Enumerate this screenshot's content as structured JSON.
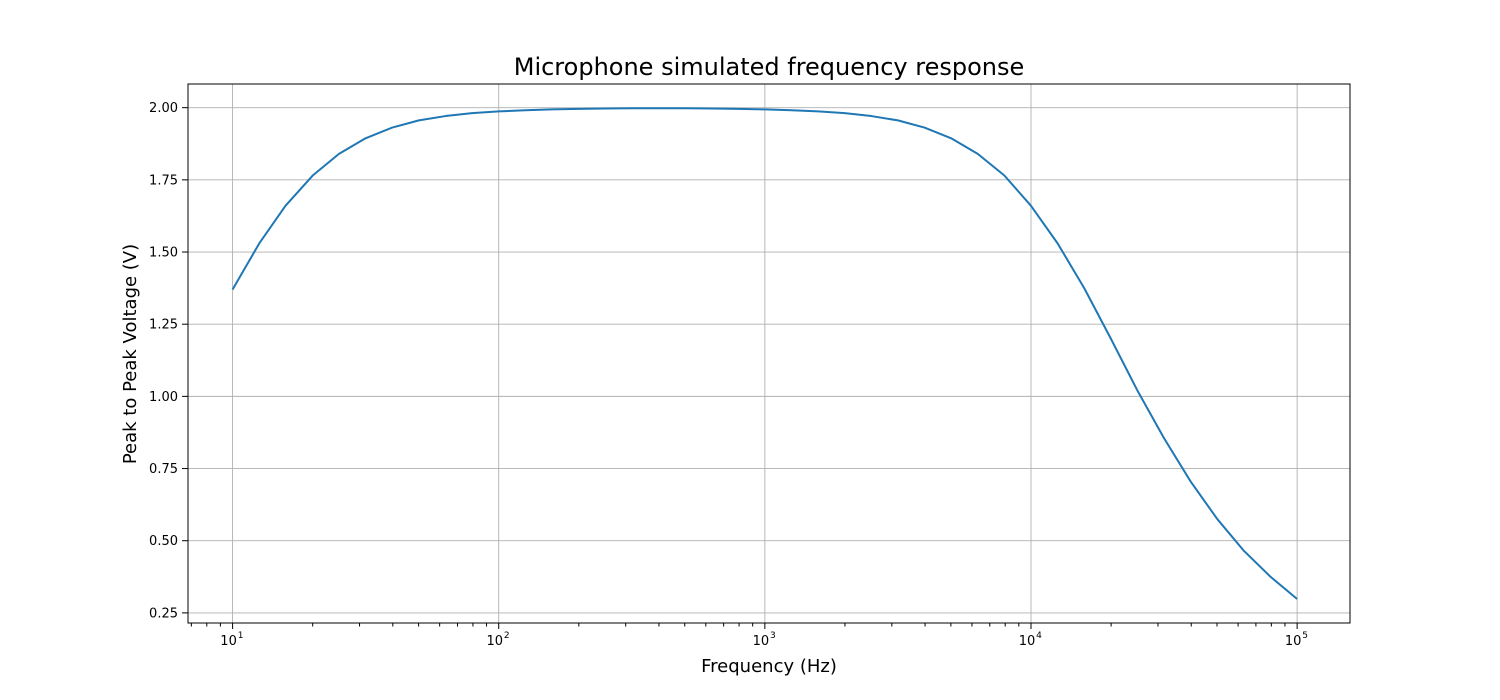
{
  "chart_data": {
    "type": "line",
    "title": "Microphone simulated frequency response",
    "xlabel": "Frequency (Hz)",
    "ylabel": "Peak to Peak Voltage (V)",
    "xscale": "log",
    "xlim": [
      6.8,
      158000
    ],
    "ylim": [
      0.215,
      2.082
    ],
    "grid": true,
    "xticks": [
      {
        "value": 10,
        "base": "10",
        "exp": "1"
      },
      {
        "value": 100,
        "base": "10",
        "exp": "2"
      },
      {
        "value": 1000,
        "base": "10",
        "exp": "3"
      },
      {
        "value": 10000,
        "base": "10",
        "exp": "4"
      },
      {
        "value": 100000,
        "base": "10",
        "exp": "5"
      }
    ],
    "yticks": [
      {
        "value": 0.25,
        "label": "0.25"
      },
      {
        "value": 0.5,
        "label": "0.50"
      },
      {
        "value": 0.75,
        "label": "0.75"
      },
      {
        "value": 1.0,
        "label": "1.00"
      },
      {
        "value": 1.25,
        "label": "1.25"
      },
      {
        "value": 1.5,
        "label": "1.50"
      },
      {
        "value": 1.75,
        "label": "1.75"
      },
      {
        "value": 2.0,
        "label": "2.00"
      }
    ],
    "series": [
      {
        "color": "#1f77b4",
        "x": [
          10,
          12.6,
          15.8,
          20,
          25.1,
          31.6,
          39.8,
          50.1,
          63.1,
          79.4,
          100,
          126,
          158,
          200,
          251,
          316,
          398,
          501,
          631,
          794,
          1000,
          1259,
          1585,
          1995,
          2512,
          3162,
          3981,
          5012,
          6310,
          7943,
          10000,
          12589,
          15849,
          19953,
          25119,
          31623,
          39811,
          50119,
          63096,
          79433,
          100000
        ],
        "y": [
          1.37,
          1.53,
          1.66,
          1.765,
          1.84,
          1.894,
          1.931,
          1.956,
          1.971,
          1.981,
          1.987,
          1.991,
          1.994,
          1.996,
          1.997,
          1.998,
          1.998,
          1.998,
          1.997,
          1.996,
          1.994,
          1.991,
          1.987,
          1.981,
          1.971,
          1.956,
          1.931,
          1.894,
          1.84,
          1.765,
          1.66,
          1.53,
          1.375,
          1.2,
          1.02,
          0.855,
          0.705,
          0.575,
          0.465,
          0.375,
          0.298
        ]
      }
    ]
  }
}
